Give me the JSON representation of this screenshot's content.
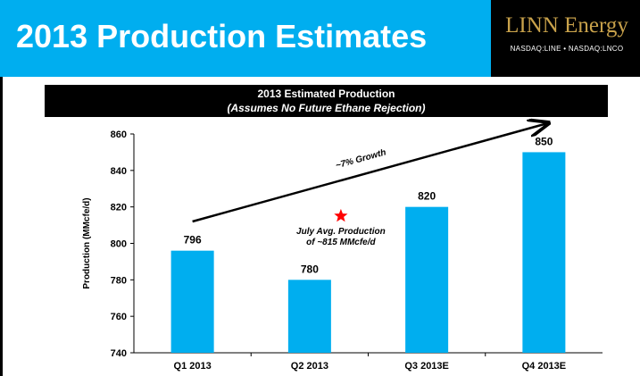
{
  "slide": {
    "title": "2013 Production Estimates",
    "logo_brand": "LINN Energy",
    "logo_ticker": "NASDAQ:LINE • NASDAQ:LNCO",
    "colors": {
      "accent": "#00aeef",
      "header_bg": "#000000",
      "logo_gold": "#c9a24b",
      "star": "#ff0000"
    }
  },
  "chart_data": {
    "type": "bar",
    "title": "2013 Estimated Production",
    "subtitle": "(Assumes No Future Ethane Rejection)",
    "categories": [
      "Q1 2013",
      "Q2 2013",
      "Q3 2013E",
      "Q4 2013E"
    ],
    "values": [
      796,
      780,
      820,
      850
    ],
    "value_labels": [
      "796",
      "780",
      "820",
      "850"
    ],
    "xlabel": "",
    "ylabel": "Production (MMcfe/d)",
    "ylim": [
      740,
      860
    ],
    "yticks": [
      740,
      760,
      780,
      800,
      820,
      840,
      860
    ],
    "grid": false,
    "growth_annotation": "~7% Growth",
    "growth_arrow": {
      "from": {
        "x": "Q1 2013",
        "y": 812
      },
      "to": {
        "x": "Q4 2013E",
        "y": 866
      }
    },
    "marker_annotation": {
      "line1": "July Avg. Production",
      "line2": "of ~815 MMcfe/d",
      "x": "Q2 2013",
      "value": 815
    }
  }
}
